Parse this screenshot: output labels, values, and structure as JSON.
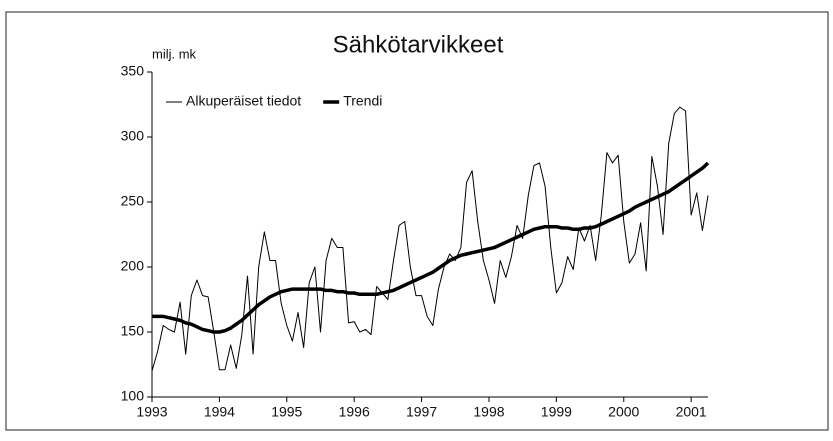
{
  "chart_data": {
    "type": "line",
    "title": "Sähkötarvikkeet",
    "y_axis_label": "milj. mk",
    "x": [
      1993,
      1993.083,
      1993.167,
      1993.25,
      1993.333,
      1993.417,
      1993.5,
      1993.583,
      1993.667,
      1993.75,
      1993.833,
      1993.917,
      1994,
      1994.083,
      1994.167,
      1994.25,
      1994.333,
      1994.417,
      1994.5,
      1994.583,
      1994.667,
      1994.75,
      1994.833,
      1994.917,
      1995,
      1995.083,
      1995.167,
      1995.25,
      1995.333,
      1995.417,
      1995.5,
      1995.583,
      1995.667,
      1995.75,
      1995.833,
      1995.917,
      1996,
      1996.083,
      1996.167,
      1996.25,
      1996.333,
      1996.417,
      1996.5,
      1996.583,
      1996.667,
      1996.75,
      1996.833,
      1996.917,
      1997,
      1997.083,
      1997.167,
      1997.25,
      1997.333,
      1997.417,
      1997.5,
      1997.583,
      1997.667,
      1997.75,
      1997.833,
      1997.917,
      1998,
      1998.083,
      1998.167,
      1998.25,
      1998.333,
      1998.417,
      1998.5,
      1998.583,
      1998.667,
      1998.75,
      1998.833,
      1998.917,
      1999,
      1999.083,
      1999.167,
      1999.25,
      1999.333,
      1999.417,
      1999.5,
      1999.583,
      1999.667,
      1999.75,
      1999.833,
      1999.917,
      2000,
      2000.083,
      2000.167,
      2000.25,
      2000.333,
      2000.417,
      2000.5,
      2000.583,
      2000.667,
      2000.75,
      2000.833,
      2000.917,
      2001,
      2001.083,
      2001.167,
      2001.25
    ],
    "series": [
      {
        "name": "Alkuperäiset tiedot",
        "color": "#000000",
        "width": 1,
        "values": [
          120,
          135,
          155,
          152,
          150,
          173,
          133,
          178,
          190,
          178,
          177,
          150,
          121,
          121,
          140,
          122,
          148,
          193,
          133,
          200,
          227,
          205,
          205,
          172,
          155,
          143,
          165,
          138,
          188,
          200,
          150,
          205,
          222,
          215,
          215,
          157,
          158,
          150,
          152,
          148,
          185,
          180,
          175,
          205,
          232,
          235,
          200,
          178,
          178,
          162,
          155,
          183,
          200,
          210,
          205,
          215,
          265,
          274,
          235,
          205,
          190,
          172,
          205,
          192,
          208,
          232,
          222,
          255,
          278,
          280,
          262,
          215,
          180,
          188,
          208,
          198,
          230,
          220,
          232,
          205,
          240,
          288,
          280,
          286,
          235,
          203,
          210,
          234,
          197,
          285,
          262,
          225,
          295,
          318,
          323,
          320,
          240,
          257,
          228,
          255
        ]
      },
      {
        "name": "Trendi",
        "color": "#000000",
        "width": 3.5,
        "values": [
          162,
          162,
          162,
          161,
          160,
          159,
          157,
          156,
          154,
          152,
          151,
          150,
          150,
          151,
          153,
          156,
          159,
          163,
          167,
          171,
          174,
          177,
          179,
          181,
          182,
          183,
          183,
          183,
          183,
          183,
          183,
          182,
          182,
          181,
          181,
          180,
          180,
          179,
          179,
          179,
          179,
          180,
          181,
          182,
          184,
          186,
          188,
          190,
          192,
          194,
          196,
          199,
          202,
          205,
          207,
          209,
          210,
          211,
          212,
          213,
          214,
          215,
          217,
          219,
          221,
          223,
          225,
          227,
          229,
          230,
          231,
          231,
          231,
          230,
          230,
          229,
          229,
          230,
          230,
          231,
          233,
          235,
          237,
          239,
          241,
          243,
          246,
          248,
          250,
          252,
          254,
          256,
          258,
          261,
          264,
          267,
          270,
          273,
          276,
          280
        ]
      }
    ],
    "xlim": [
      1993,
      2001.25
    ],
    "xticks": [
      1993,
      1994,
      1995,
      1996,
      1997,
      1998,
      1999,
      2000,
      2001
    ],
    "ylim": [
      100,
      350
    ],
    "yticks": [
      100,
      150,
      200,
      250,
      300,
      350
    ],
    "grid": false,
    "legend": "top-left"
  }
}
